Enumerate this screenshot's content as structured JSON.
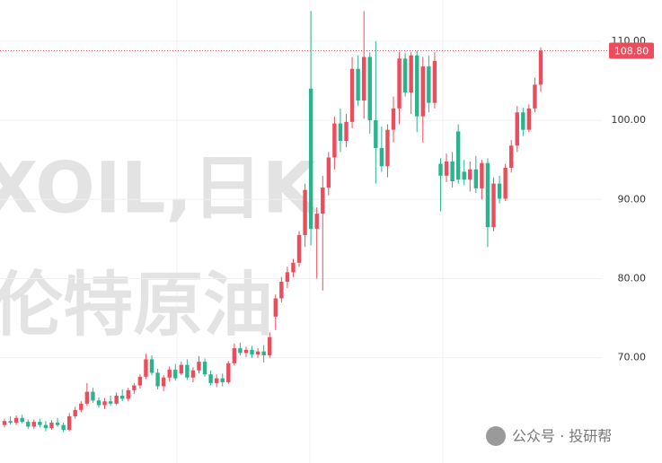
{
  "chart_data": {
    "type": "candlestick",
    "watermark": "XOIL,日K",
    "watermark_sub": "伦特原油",
    "source_mark": "公众号 · 投研帮",
    "up_color": "#eb4d5c",
    "down_color": "#2bb38e",
    "ylim": [
      56.7,
      115.2
    ],
    "yticks": [
      {
        "value": 70,
        "label": "70.00"
      },
      {
        "value": 80,
        "label": "80.00"
      },
      {
        "value": 90,
        "label": "90.00"
      },
      {
        "value": 100,
        "label": "100.00"
      },
      {
        "value": 110,
        "label": "110.00"
      }
    ],
    "last_price": {
      "value": 108.8,
      "label": "108.80"
    },
    "grid": true,
    "open": [
      61.5,
      62.0,
      61.8,
      62.4,
      61.9,
      61.3,
      61.9,
      61.5,
      61.1,
      61.8,
      61.5,
      60.9,
      62.6,
      63.4,
      64.2,
      65.7,
      64.6,
      64.0,
      64.5,
      64.2,
      65.2,
      64.8,
      65.9,
      66.5,
      67.6,
      69.8,
      68.1,
      66.4,
      67.5,
      68.5,
      68.0,
      69.1,
      67.5,
      68.4,
      69.5,
      67.9,
      66.8,
      67.4,
      66.9,
      69.3,
      71.2,
      70.6,
      71.0,
      70.4,
      70.8,
      70.3,
      75.2,
      77.5,
      79.6,
      80.8,
      82.0,
      85.5,
      104.0,
      86.3,
      88.2,
      91.5,
      95.3,
      99.6,
      97.4,
      99.8,
      106.5,
      102.5,
      108.0,
      100.0,
      96.5,
      94.2,
      98.8,
      101.5,
      107.8,
      103.5,
      108.2,
      100.5,
      106.8,
      102.2,
      94.5,
      93.0,
      94.8,
      98.6,
      93.5,
      92.5,
      93.8,
      91.4,
      94.6,
      86.5,
      92.0,
      90.1,
      94.0,
      96.8,
      101.0,
      98.8,
      101.5,
      104.5
    ],
    "high": [
      62.3,
      62.6,
      62.7,
      62.8,
      62.2,
      62.2,
      62.3,
      62.0,
      62.1,
      62.4,
      61.8,
      63.0,
      63.8,
      64.5,
      66.8,
      66.2,
      65.0,
      64.9,
      65.2,
      65.6,
      66.0,
      66.2,
      66.8,
      67.9,
      70.5,
      70.3,
      68.6,
      67.8,
      68.9,
      69.2,
      69.5,
      69.8,
      68.8,
      70.2,
      69.9,
      68.4,
      67.9,
      68.0,
      69.6,
      71.8,
      71.9,
      71.4,
      71.5,
      71.2,
      71.6,
      73.2,
      78.0,
      80.2,
      81.5,
      82.5,
      86.0,
      92.0,
      113.8,
      89.0,
      93.0,
      96.0,
      100.5,
      101.5,
      100.8,
      108.0,
      108.2,
      113.8,
      108.6,
      110.0,
      99.2,
      99.5,
      103.0,
      108.6,
      108.5,
      108.6,
      108.8,
      108.0,
      108.2,
      108.6,
      95.2,
      95.8,
      96.0,
      99.5,
      95.0,
      94.8,
      95.5,
      95.0,
      95.2,
      92.8,
      93.0,
      94.5,
      97.5,
      101.8,
      101.6,
      102.0,
      105.4,
      109.2
    ],
    "low": [
      61.2,
      61.6,
      61.5,
      61.7,
      61.0,
      61.0,
      61.2,
      60.7,
      60.9,
      61.3,
      60.6,
      60.7,
      62.3,
      63.1,
      63.9,
      64.3,
      63.7,
      63.5,
      63.9,
      64.0,
      64.5,
      64.5,
      65.4,
      66.1,
      67.3,
      67.8,
      66.0,
      65.8,
      67.0,
      67.1,
      67.8,
      67.2,
      66.9,
      68.0,
      67.6,
      66.5,
      66.3,
      66.4,
      66.7,
      69.0,
      70.3,
      70.1,
      70.0,
      70.0,
      69.4,
      70.0,
      73.5,
      77.0,
      78.8,
      80.2,
      81.5,
      84.0,
      84.2,
      80.0,
      78.5,
      90.5,
      93.8,
      96.0,
      96.6,
      99.0,
      101.8,
      100.2,
      98.3,
      92.0,
      93.5,
      92.8,
      97.2,
      99.5,
      103.0,
      100.8,
      98.5,
      97.2,
      101.0,
      101.5,
      88.5,
      92.2,
      91.5,
      92.0,
      91.8,
      91.0,
      90.8,
      90.0,
      84.0,
      86.0,
      89.5,
      89.8,
      93.4,
      96.0,
      98.0,
      98.5,
      101.0,
      103.6
    ],
    "close": [
      62.0,
      61.8,
      62.4,
      61.9,
      61.3,
      61.9,
      61.5,
      61.1,
      61.8,
      61.5,
      60.9,
      62.6,
      63.4,
      64.2,
      65.7,
      64.6,
      64.0,
      64.5,
      64.2,
      65.2,
      64.8,
      65.9,
      66.5,
      67.6,
      69.8,
      68.1,
      66.4,
      67.5,
      68.5,
      67.4,
      69.1,
      67.5,
      68.4,
      69.5,
      67.9,
      66.8,
      67.4,
      66.9,
      69.3,
      71.2,
      70.6,
      71.0,
      70.4,
      70.8,
      70.3,
      72.6,
      77.5,
      79.6,
      80.8,
      82.0,
      85.5,
      91.2,
      86.3,
      88.2,
      91.5,
      95.3,
      99.6,
      97.4,
      99.8,
      106.5,
      102.5,
      108.0,
      100.0,
      96.5,
      94.2,
      98.8,
      101.5,
      107.8,
      103.5,
      108.2,
      100.5,
      106.8,
      102.2,
      107.5,
      93.0,
      94.8,
      92.3,
      92.5,
      92.5,
      93.8,
      91.4,
      94.6,
      86.5,
      92.0,
      90.1,
      94.0,
      96.8,
      101.0,
      98.8,
      101.5,
      104.5,
      108.8
    ]
  }
}
